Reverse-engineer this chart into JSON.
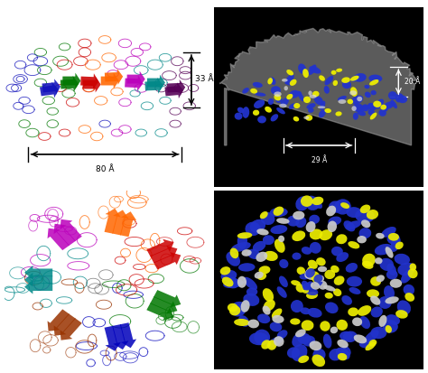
{
  "figure_bg": "#ffffff",
  "colors_side": [
    "#1111bb",
    "#007700",
    "#cc0000",
    "#ff6600",
    "#bb00bb",
    "#008888",
    "#550055",
    "#cc4400",
    "#ff88aa",
    "#33aa33",
    "#cc0066",
    "#006699"
  ],
  "colors_top": [
    "#0000bb",
    "#007700",
    "#cc0000",
    "#ff6600",
    "#bb00bb",
    "#008888",
    "#993300",
    "#cc0066",
    "#006699",
    "#33aa33"
  ],
  "em_blue": "#2233cc",
  "em_yellow": "#eeee00",
  "em_gray": "#999999",
  "em_white": "#cccccc",
  "arrow_color_dark": "#000000",
  "arrow_color_light": "#ffffff",
  "label_33": "33 Å",
  "label_80": "80 Å",
  "label_20": "20 Å",
  "label_29": "29 Å"
}
